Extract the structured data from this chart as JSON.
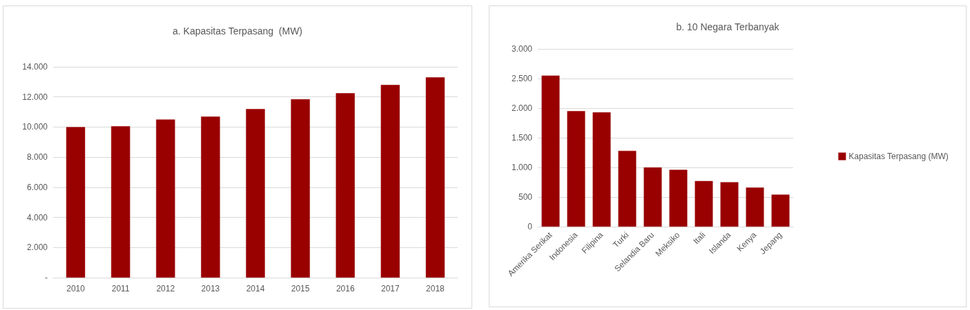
{
  "chart_data": [
    {
      "type": "bar",
      "title": "a. Kapasitas Terpasang  (MW)",
      "categories": [
        "2010",
        "2011",
        "2012",
        "2013",
        "2014",
        "2015",
        "2016",
        "2017",
        "2018"
      ],
      "values": [
        10000,
        10050,
        10500,
        10700,
        11200,
        11850,
        12250,
        12800,
        13300
      ],
      "color": "#990000",
      "ylim": [
        0,
        14000
      ],
      "yticks": [
        {
          "value": 0,
          "label": "-"
        },
        {
          "value": 2000,
          "label": "2.000"
        },
        {
          "value": 4000,
          "label": "4.000"
        },
        {
          "value": 6000,
          "label": "6.000"
        },
        {
          "value": 8000,
          "label": "8.000"
        },
        {
          "value": 10000,
          "label": "10.000"
        },
        {
          "value": 12000,
          "label": "12.000"
        },
        {
          "value": 14000,
          "label": "14.000"
        }
      ],
      "grid": "y",
      "legend": false
    },
    {
      "type": "bar",
      "title": "b. 10 Negara Terbanyak",
      "categories": [
        "Amerika Serikat",
        "Indonesia",
        "Filipina",
        "Turki",
        "Selandia Baru",
        "Meksiko",
        "Itali",
        "Islanda",
        "Kenya",
        "Jepang"
      ],
      "series": [
        {
          "name": "Kapasitas Terpasang (MW)",
          "color": "#990000",
          "values": [
            2550,
            1950,
            1930,
            1280,
            1000,
            960,
            770,
            750,
            660,
            540
          ]
        }
      ],
      "ylim": [
        0,
        3000
      ],
      "yticks": [
        0,
        {
          "value": 500,
          "label": "500"
        },
        {
          "value": 1000,
          "label": "1.000"
        },
        {
          "value": 1500,
          "label": "1.500"
        },
        {
          "value": 2000,
          "label": "2.000"
        },
        {
          "value": 2500,
          "label": "2.500"
        },
        {
          "value": 3000,
          "label": "3.000"
        }
      ],
      "grid": "y",
      "legend": "right"
    }
  ]
}
